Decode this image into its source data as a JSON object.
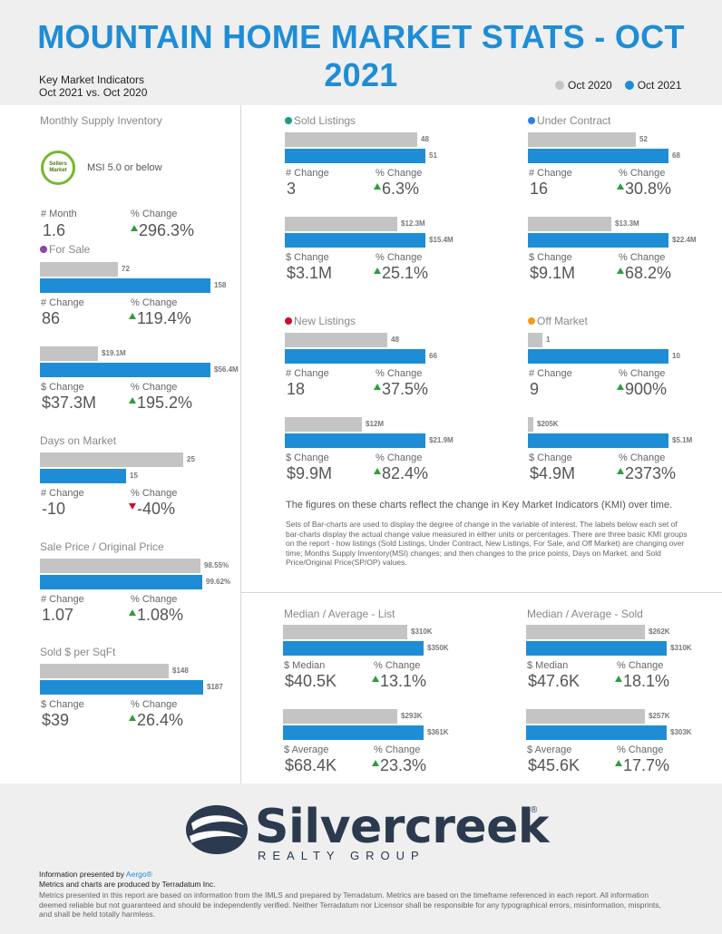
{
  "title": "MOUNTAIN HOME MARKET STATS - OCT 2021",
  "kmi": {
    "line1": "Key Market Indicators",
    "line2": "Oct 2021 vs. Oct 2020"
  },
  "legend": {
    "prev": "Oct 2020",
    "curr": "Oct 2021",
    "prev_color": "#c4c4c4",
    "curr_color": "#1f8dd6"
  },
  "colors": {
    "up": "#2e9e3b",
    "down": "#c8102e",
    "sold_listings": "#1a9e83",
    "under_contract": "#2f80e8",
    "new_listings": "#c8102e",
    "off_market": "#f39a1e",
    "for_sale": "#8e44ad"
  },
  "msi": {
    "title": "Monthly Supply Inventory",
    "badge": "Sellers Market",
    "text": "MSI 5.0 or below",
    "lbl1": "# Month",
    "val1": "1.6",
    "lbl2": "% Change",
    "val2": "296.3%"
  },
  "for_sale": {
    "title": "For Sale",
    "count": {
      "prev": "72",
      "curr": "158",
      "prev_value": 72,
      "curr_value": 158,
      "lbl1": "# Change",
      "val1": "86",
      "lbl2": "% Change",
      "val2": "119.4%"
    },
    "dollar": {
      "prev": "$19.1M",
      "curr": "$56.4M",
      "prev_value": 19.1,
      "curr_value": 56.4,
      "lbl1": "$ Change",
      "val1": "$37.3M",
      "lbl2": "% Change",
      "val2": "195.2%"
    }
  },
  "dom": {
    "title": "Days on Market",
    "prev": "25",
    "curr": "15",
    "prev_value": 25,
    "curr_value": 15,
    "lbl1": "# Change",
    "val1": "-10",
    "lbl2": "% Change",
    "val2": "-40%"
  },
  "sp_op": {
    "title": "Sale Price / Original Price",
    "prev": "98.55%",
    "curr": "99.62%",
    "prev_value": 98.55,
    "curr_value": 99.62,
    "lbl1": "# Change",
    "val1": "1.07",
    "lbl2": "% Change",
    "val2": "1.08%"
  },
  "sqft": {
    "title": "Sold $ per SqFt",
    "prev": "$148",
    "curr": "$187",
    "prev_value": 148,
    "curr_value": 187,
    "lbl1": "$ Change",
    "val1": "$39",
    "lbl2": "% Change",
    "val2": "26.4%"
  },
  "sold": {
    "title": "Sold Listings",
    "count": {
      "prev": "48",
      "curr": "51",
      "prev_value": 48,
      "curr_value": 51,
      "lbl1": "# Change",
      "val1": "3",
      "lbl2": "% Change",
      "val2": "6.3%"
    },
    "dollar": {
      "prev": "$12.3M",
      "curr": "$15.4M",
      "prev_value": 12.3,
      "curr_value": 15.4,
      "lbl1": "$ Change",
      "val1": "$3.1M",
      "lbl2": "% Change",
      "val2": "25.1%"
    }
  },
  "under_contract": {
    "title": "Under Contract",
    "count": {
      "prev": "52",
      "curr": "68",
      "prev_value": 52,
      "curr_value": 68,
      "lbl1": "# Change",
      "val1": "16",
      "lbl2": "% Change",
      "val2": "30.8%"
    },
    "dollar": {
      "prev": "$13.3M",
      "curr": "$22.4M",
      "prev_value": 13.3,
      "curr_value": 22.4,
      "lbl1": "$ Change",
      "val1": "$9.1M",
      "lbl2": "% Change",
      "val2": "68.2%"
    }
  },
  "new_listings": {
    "title": "New Listings",
    "count": {
      "prev": "48",
      "curr": "66",
      "prev_value": 48,
      "curr_value": 66,
      "lbl1": "# Change",
      "val1": "18",
      "lbl2": "% Change",
      "val2": "37.5%"
    },
    "dollar": {
      "prev": "$12M",
      "curr": "$21.9M",
      "prev_value": 12,
      "curr_value": 21.9,
      "lbl1": "$ Change",
      "val1": "$9.9M",
      "lbl2": "% Change",
      "val2": "82.4%"
    }
  },
  "off_market": {
    "title": "Off Market",
    "count": {
      "prev": "1",
      "curr": "10",
      "prev_value": 1,
      "curr_value": 10,
      "lbl1": "# Change",
      "val1": "9",
      "lbl2": "% Change",
      "val2": "900%"
    },
    "dollar": {
      "prev": "$205K",
      "curr": "$5.1M",
      "prev_value": 0.205,
      "curr_value": 5.1,
      "lbl1": "$ Change",
      "val1": "$4.9M",
      "lbl2": "% Change",
      "val2": "2373%"
    }
  },
  "note": {
    "main": "The figures on these charts reflect the change in Key Market Indicators (KMI) over time.",
    "sub": "Sets of Bar-charts are used to display the degree of change in the variable of interest. The labels below each set of bar-charts display the actual change value measured in either units or percentages. There are three basic KMI groups on the report - how listings (Sold Listings, Under Contract, New Listings, For Sale, and Off Market) are changing over time; Months Supply Inventory(MSI) changes; and then changes to the price points, Days on Market, and Sold Price/Original Price(SP/OP) values."
  },
  "list": {
    "title": "Median / Average - List",
    "median": {
      "prev": "$310K",
      "curr": "$350K",
      "prev_value": 310,
      "curr_value": 350,
      "lbl1": "$ Median",
      "val1": "$40.5K",
      "lbl2": "% Change",
      "val2": "13.1%"
    },
    "average": {
      "prev": "$293K",
      "curr": "$361K",
      "prev_value": 293,
      "curr_value": 361,
      "lbl1": "$ Average",
      "val1": "$68.4K",
      "lbl2": "% Change",
      "val2": "23.3%"
    }
  },
  "sold_price": {
    "title": "Median / Average - Sold",
    "median": {
      "prev": "$262K",
      "curr": "$310K",
      "prev_value": 262,
      "curr_value": 310,
      "lbl1": "$ Median",
      "val1": "$47.6K",
      "lbl2": "% Change",
      "val2": "18.1%"
    },
    "average": {
      "prev": "$257K",
      "curr": "$303K",
      "prev_value": 257,
      "curr_value": 303,
      "lbl1": "$ Average",
      "val1": "$45.6K",
      "lbl2": "% Change",
      "val2": "17.7%"
    }
  },
  "footer": {
    "logo_word": "Silvercreek",
    "logo_reg": "®",
    "logo_sub": "REALTY GROUP",
    "presented_prefix": "Information presented by ",
    "presented_link": "Aergo®",
    "produced": "Metrics and charts are produced by Terradatum Inc.",
    "disclaimer": "Metrics presented in this report are based on information from the IMLS and prepared by Terradatum. Metrics are based on the timeframe referenced in each report. All information deemed reliable but not guaranteed and should be independently verified. Neither Terradatum nor Licensor shall be responsible for any typographical errors, misinformation, misprints, and shall be held totally harmless."
  }
}
